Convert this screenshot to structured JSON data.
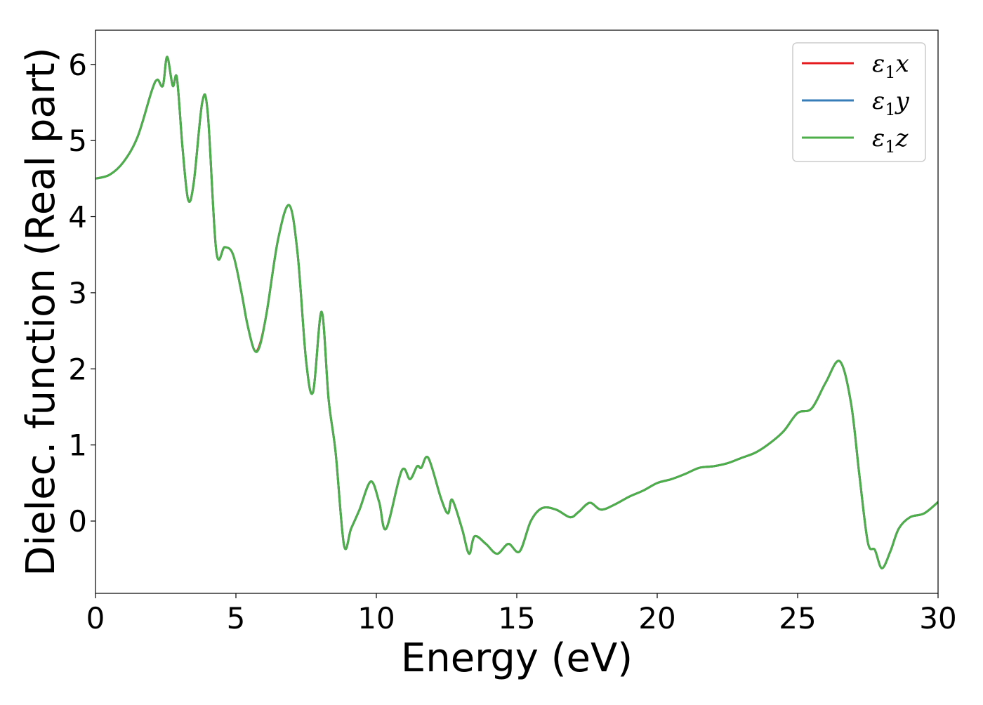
{
  "chart_data": {
    "type": "line",
    "title": "",
    "xlabel": "Energy (eV)",
    "ylabel": "Dielec. function (Real part)",
    "xlim": [
      0,
      30
    ],
    "ylim": [
      -0.95,
      6.45
    ],
    "xticks": [
      0,
      5,
      10,
      15,
      20,
      25,
      30
    ],
    "yticks": [
      0,
      1,
      2,
      3,
      4,
      5,
      6
    ],
    "grid": false,
    "legend_position": "top-right",
    "series": [
      {
        "name": "ε₁x",
        "legend": {
          "symbol": "ε",
          "sub": "1",
          "axis": "x"
        },
        "color": "#e41a1c",
        "x": [
          0,
          0.5,
          1.0,
          1.5,
          2.0,
          2.2,
          2.4,
          2.55,
          2.75,
          2.9,
          3.1,
          3.3,
          3.5,
          3.8,
          4.0,
          4.3,
          4.6,
          4.9,
          5.2,
          5.4,
          5.65,
          5.85,
          6.1,
          6.5,
          6.9,
          7.2,
          7.5,
          7.75,
          8.05,
          8.3,
          8.55,
          8.85,
          9.1,
          9.4,
          9.8,
          10.1,
          10.35,
          10.9,
          11.2,
          11.45,
          11.6,
          11.85,
          12.3,
          12.55,
          12.7,
          13.05,
          13.3,
          13.5,
          13.9,
          14.3,
          14.7,
          15.1,
          15.5,
          15.9,
          16.4,
          16.9,
          17.2,
          17.6,
          18.0,
          18.5,
          19.0,
          19.5,
          20.0,
          20.5,
          21.0,
          21.5,
          22.0,
          22.5,
          23.0,
          23.5,
          24.0,
          24.5,
          25.0,
          25.5,
          26.0,
          26.5,
          26.9,
          27.2,
          27.5,
          27.75,
          28.0,
          28.3,
          28.6,
          29.0,
          29.5,
          30.0
        ],
        "y": [
          4.5,
          4.55,
          4.72,
          5.05,
          5.65,
          5.8,
          5.72,
          6.1,
          5.72,
          5.82,
          4.9,
          4.22,
          4.45,
          5.5,
          5.35,
          3.55,
          3.6,
          3.5,
          3.0,
          2.6,
          2.25,
          2.32,
          2.75,
          3.7,
          4.15,
          3.5,
          2.1,
          1.7,
          2.75,
          1.6,
          0.9,
          -0.32,
          -0.1,
          0.15,
          0.52,
          0.25,
          -0.1,
          0.66,
          0.55,
          0.72,
          0.7,
          0.83,
          0.3,
          0.1,
          0.28,
          -0.1,
          -0.43,
          -0.2,
          -0.3,
          -0.43,
          -0.3,
          -0.4,
          0.0,
          0.17,
          0.15,
          0.05,
          0.12,
          0.24,
          0.15,
          0.22,
          0.32,
          0.4,
          0.5,
          0.55,
          0.62,
          0.7,
          0.72,
          0.76,
          0.83,
          0.9,
          1.02,
          1.18,
          1.42,
          1.48,
          1.82,
          2.1,
          1.55,
          0.6,
          -0.28,
          -0.38,
          -0.62,
          -0.4,
          -0.1,
          0.05,
          0.1,
          0.25
        ]
      },
      {
        "name": "ε₁y",
        "legend": {
          "symbol": "ε",
          "sub": "1",
          "axis": "y"
        },
        "color": "#377eb8",
        "x": [
          0,
          0.5,
          1.0,
          1.5,
          2.0,
          2.2,
          2.4,
          2.55,
          2.75,
          2.9,
          3.1,
          3.3,
          3.5,
          3.8,
          4.0,
          4.3,
          4.6,
          4.9,
          5.2,
          5.4,
          5.65,
          5.85,
          6.1,
          6.5,
          6.9,
          7.2,
          7.5,
          7.75,
          8.05,
          8.3,
          8.55,
          8.85,
          9.1,
          9.4,
          9.8,
          10.1,
          10.35,
          10.9,
          11.2,
          11.45,
          11.6,
          11.85,
          12.3,
          12.55,
          12.7,
          13.05,
          13.3,
          13.5,
          13.9,
          14.3,
          14.7,
          15.1,
          15.5,
          15.9,
          16.4,
          16.9,
          17.2,
          17.6,
          18.0,
          18.5,
          19.0,
          19.5,
          20.0,
          20.5,
          21.0,
          21.5,
          22.0,
          22.5,
          23.0,
          23.5,
          24.0,
          24.5,
          25.0,
          25.5,
          26.0,
          26.5,
          26.9,
          27.2,
          27.5,
          27.75,
          28.0,
          28.3,
          28.6,
          29.0,
          29.5,
          30.0
        ],
        "y": [
          4.5,
          4.55,
          4.72,
          5.05,
          5.65,
          5.8,
          5.72,
          6.1,
          5.72,
          5.82,
          4.9,
          4.22,
          4.45,
          5.5,
          5.35,
          3.55,
          3.6,
          3.5,
          3.0,
          2.6,
          2.25,
          2.3,
          2.75,
          3.7,
          4.15,
          3.5,
          2.1,
          1.7,
          2.75,
          1.6,
          0.9,
          -0.32,
          -0.1,
          0.15,
          0.52,
          0.25,
          -0.1,
          0.66,
          0.55,
          0.72,
          0.7,
          0.83,
          0.3,
          0.1,
          0.28,
          -0.1,
          -0.43,
          -0.2,
          -0.3,
          -0.43,
          -0.3,
          -0.4,
          0.0,
          0.17,
          0.15,
          0.05,
          0.12,
          0.24,
          0.15,
          0.22,
          0.32,
          0.4,
          0.5,
          0.55,
          0.62,
          0.7,
          0.72,
          0.76,
          0.83,
          0.9,
          1.02,
          1.18,
          1.42,
          1.48,
          1.82,
          2.1,
          1.55,
          0.6,
          -0.28,
          -0.38,
          -0.62,
          -0.4,
          -0.1,
          0.05,
          0.1,
          0.25
        ]
      },
      {
        "name": "ε₁z",
        "legend": {
          "symbol": "ε",
          "sub": "1",
          "axis": "z"
        },
        "color": "#4daf4a",
        "x": [
          0,
          0.5,
          1.0,
          1.5,
          2.0,
          2.2,
          2.4,
          2.55,
          2.75,
          2.9,
          3.1,
          3.3,
          3.5,
          3.8,
          4.0,
          4.3,
          4.6,
          4.9,
          5.2,
          5.4,
          5.65,
          5.85,
          6.1,
          6.5,
          6.9,
          7.2,
          7.5,
          7.75,
          8.05,
          8.3,
          8.55,
          8.85,
          9.1,
          9.4,
          9.8,
          10.1,
          10.35,
          10.9,
          11.2,
          11.45,
          11.6,
          11.85,
          12.3,
          12.55,
          12.7,
          13.05,
          13.3,
          13.5,
          13.9,
          14.3,
          14.7,
          15.1,
          15.5,
          15.9,
          16.4,
          16.9,
          17.2,
          17.6,
          18.0,
          18.5,
          19.0,
          19.5,
          20.0,
          20.5,
          21.0,
          21.5,
          22.0,
          22.5,
          23.0,
          23.5,
          24.0,
          24.5,
          25.0,
          25.5,
          26.0,
          26.5,
          26.9,
          27.2,
          27.5,
          27.75,
          28.0,
          28.3,
          28.6,
          29.0,
          29.5,
          30.0
        ],
        "y": [
          4.5,
          4.55,
          4.72,
          5.05,
          5.65,
          5.8,
          5.72,
          6.1,
          5.72,
          5.82,
          4.9,
          4.22,
          4.45,
          5.5,
          5.35,
          3.55,
          3.6,
          3.5,
          3.0,
          2.6,
          2.25,
          2.3,
          2.75,
          3.7,
          4.15,
          3.5,
          2.1,
          1.7,
          2.75,
          1.6,
          0.9,
          -0.32,
          -0.1,
          0.15,
          0.52,
          0.25,
          -0.1,
          0.66,
          0.55,
          0.72,
          0.7,
          0.83,
          0.3,
          0.1,
          0.28,
          -0.1,
          -0.43,
          -0.2,
          -0.3,
          -0.43,
          -0.3,
          -0.4,
          0.0,
          0.17,
          0.15,
          0.05,
          0.12,
          0.24,
          0.15,
          0.22,
          0.32,
          0.4,
          0.5,
          0.55,
          0.62,
          0.7,
          0.72,
          0.76,
          0.83,
          0.9,
          1.02,
          1.18,
          1.42,
          1.48,
          1.82,
          2.1,
          1.55,
          0.6,
          -0.28,
          -0.38,
          -0.62,
          -0.4,
          -0.1,
          0.05,
          0.1,
          0.25
        ]
      }
    ]
  }
}
